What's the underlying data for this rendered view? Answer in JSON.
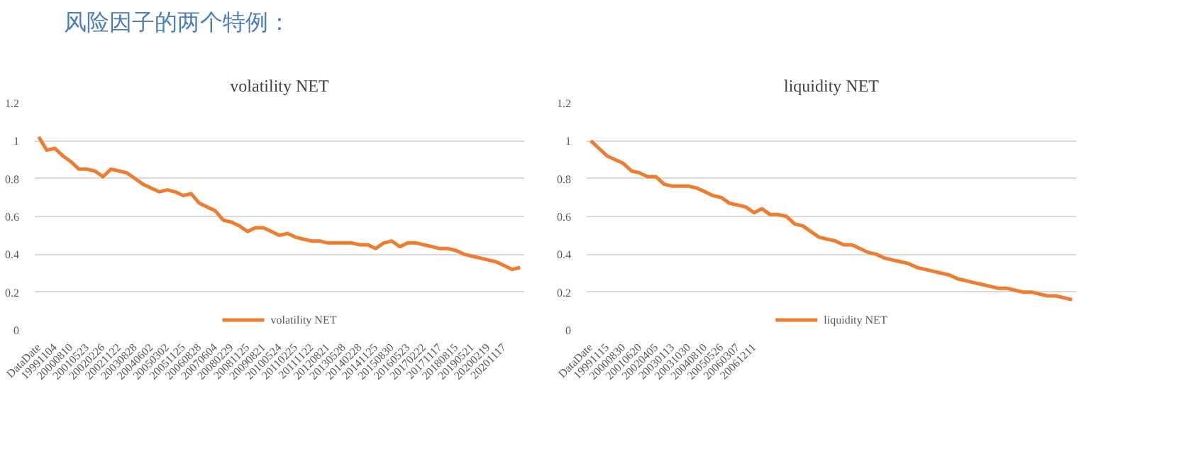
{
  "chart_data": [
    {
      "type": "line",
      "title": "volatility NET",
      "annotations": [
        "风险因子的两个特例："
      ],
      "legend": "bottom",
      "grid": "y",
      "line_style": "solid",
      "categories": [
        "DataDate",
        null,
        "19991104",
        null,
        "20000810",
        null,
        "20010523",
        null,
        "20020226",
        null,
        "20021122",
        null,
        "20030828",
        null,
        "20040602",
        null,
        "20050302",
        null,
        "20051125",
        null,
        "20060828",
        null,
        "20070604",
        null,
        "20080229",
        null,
        "20081125",
        null,
        "20090821",
        null,
        "20100524",
        null,
        "20110225",
        null,
        "20111122",
        null,
        "20120821",
        null,
        "20130528",
        null,
        "20140228",
        null,
        "20141125",
        null,
        "20150830",
        null,
        "20160523",
        null,
        "20170222",
        null,
        "20171117",
        null,
        "20180815",
        null,
        "20190521",
        null,
        "20200219",
        null,
        "20201117",
        null,
        null
      ],
      "ylim": [
        0,
        1.2
      ],
      "yticks": [
        0,
        0.2,
        0.4,
        0.6,
        0.8,
        1,
        1.2
      ],
      "series": [
        {
          "name": "volatility NET",
          "color": "#ed7d31",
          "values": [
            1.02,
            0.95,
            0.96,
            0.92,
            0.89,
            0.85,
            0.85,
            0.84,
            0.81,
            0.85,
            0.84,
            0.83,
            0.8,
            0.77,
            0.75,
            0.73,
            0.74,
            0.73,
            0.71,
            0.72,
            0.67,
            0.65,
            0.63,
            0.58,
            0.57,
            0.55,
            0.52,
            0.54,
            0.54,
            0.52,
            0.5,
            0.51,
            0.49,
            0.48,
            0.47,
            0.47,
            0.46,
            0.46,
            0.46,
            0.46,
            0.45,
            0.45,
            0.43,
            0.46,
            0.47,
            0.44,
            0.46,
            0.46,
            0.45,
            0.44,
            0.43,
            0.43,
            0.42,
            0.4,
            0.39,
            0.38,
            0.37,
            0.36,
            0.34,
            0.32,
            0.33
          ]
        }
      ]
    },
    {
      "type": "line",
      "title": "liquidity NET",
      "legend": "bottom",
      "grid": "y",
      "line_style": "solid",
      "categories": [
        "DataDate",
        null,
        "19991115",
        null,
        "20000830",
        null,
        "20010620",
        null,
        "20020405",
        null,
        "20030113",
        null,
        "20031030",
        null,
        "20040810",
        null,
        "20050526",
        null,
        "20060307",
        null,
        "20061211",
        null,
        null,
        null,
        null,
        null,
        null,
        null,
        null,
        null,
        null,
        null,
        null,
        null,
        null,
        null,
        null,
        null,
        null,
        null,
        null,
        null,
        null,
        null,
        null,
        null,
        null,
        null,
        null,
        null,
        null,
        null,
        null,
        null,
        null,
        null,
        null,
        null,
        null,
        null
      ],
      "ylim": [
        0,
        1.2
      ],
      "yticks": [
        0,
        0.2,
        0.4,
        0.6,
        0.8,
        1,
        1.2
      ],
      "series": [
        {
          "name": "liquidity NET",
          "color": "#ed7d31",
          "values": [
            1.0,
            0.96,
            0.92,
            0.9,
            0.88,
            0.84,
            0.83,
            0.81,
            0.81,
            0.77,
            0.76,
            0.76,
            0.76,
            0.75,
            0.73,
            0.71,
            0.7,
            0.67,
            0.66,
            0.65,
            0.62,
            0.64,
            0.61,
            0.61,
            0.6,
            0.56,
            0.55,
            0.52,
            0.49,
            0.48,
            0.47,
            0.45,
            0.45,
            0.43,
            0.41,
            0.4,
            0.38,
            0.37,
            0.36,
            0.35,
            0.33,
            0.32,
            0.31,
            0.3,
            0.29,
            0.27,
            0.26,
            0.25,
            0.24,
            0.23,
            0.22,
            0.22,
            0.21,
            0.2,
            0.2,
            0.19,
            0.18,
            0.18,
            0.17,
            0.16
          ]
        }
      ]
    }
  ]
}
